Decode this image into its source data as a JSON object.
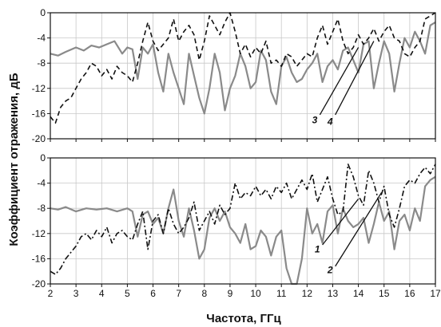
{
  "chart_data": {
    "type": "line",
    "xlabel": "Частота, ГГц",
    "ylabel": "Коэффициент отражения, дБ",
    "xlim": [
      2,
      17
    ],
    "x_ticks": [
      "2",
      "3",
      "4",
      "5",
      "6",
      "7",
      "8",
      "9",
      "10",
      "11",
      "12",
      "13",
      "14",
      "15",
      "16",
      "17"
    ],
    "grid": true,
    "panels": [
      {
        "ylim": [
          -20,
          0
        ],
        "y_ticks": [
          "0",
          "-4",
          "-8",
          "-12",
          "-16",
          "-20"
        ],
        "series": [
          {
            "name": "3",
            "style": "solid",
            "color": "#8a8a8a",
            "x": [
              2.0,
              2.3,
              2.6,
              3.0,
              3.3,
              3.6,
              3.9,
              4.2,
              4.5,
              4.8,
              5.0,
              5.2,
              5.4,
              5.6,
              5.8,
              6.0,
              6.2,
              6.4,
              6.6,
              6.8,
              7.0,
              7.2,
              7.4,
              7.6,
              7.8,
              8.0,
              8.2,
              8.4,
              8.6,
              8.8,
              9.0,
              9.2,
              9.4,
              9.6,
              9.8,
              10.0,
              10.2,
              10.4,
              10.6,
              10.8,
              11.0,
              11.2,
              11.4,
              11.6,
              11.8,
              12.0,
              12.2,
              12.4,
              12.6,
              12.8,
              13.0,
              13.2,
              13.4,
              13.6,
              13.8,
              14.0,
              14.2,
              14.4,
              14.6,
              14.8,
              15.0,
              15.2,
              15.4,
              15.6,
              15.8,
              16.0,
              16.2,
              16.4,
              16.6,
              16.8,
              17.0
            ],
            "y": [
              -6.5,
              -6.8,
              -6.2,
              -5.5,
              -6.0,
              -5.2,
              -5.5,
              -5.0,
              -4.5,
              -6.5,
              -5.5,
              -5.8,
              -10.5,
              -5.5,
              -6.5,
              -5.0,
              -9.5,
              -12.5,
              -6.5,
              -9.5,
              -12.0,
              -14.5,
              -6.5,
              -10.0,
              -13.5,
              -16.0,
              -12.0,
              -6.5,
              -9.5,
              -15.5,
              -12.0,
              -10.0,
              -6.5,
              -8.5,
              -12.0,
              -11.0,
              -6.0,
              -7.5,
              -12.5,
              -14.5,
              -8.5,
              -7.0,
              -9.5,
              -11.0,
              -10.5,
              -9.0,
              -8.0,
              -6.5,
              -11.0,
              -8.5,
              -7.5,
              -9.0,
              -6.0,
              -5.5,
              -7.5,
              -9.5,
              -5.0,
              -4.5,
              -12.0,
              -8.0,
              -4.5,
              -6.5,
              -12.5,
              -8.0,
              -4.0,
              -5.5,
              -3.0,
              -4.5,
              -6.5,
              -2.0,
              -1.5
            ]
          },
          {
            "name": "4",
            "style": "dashed",
            "color": "#111111",
            "x": [
              2.0,
              2.2,
              2.4,
              2.6,
              2.8,
              3.0,
              3.2,
              3.4,
              3.6,
              3.8,
              4.0,
              4.2,
              4.4,
              4.6,
              4.8,
              5.0,
              5.2,
              5.4,
              5.6,
              5.8,
              6.0,
              6.2,
              6.4,
              6.6,
              6.8,
              7.0,
              7.2,
              7.4,
              7.6,
              7.8,
              8.0,
              8.2,
              8.4,
              8.6,
              8.8,
              9.0,
              9.2,
              9.4,
              9.6,
              9.8,
              10.0,
              10.2,
              10.4,
              10.6,
              10.8,
              11.0,
              11.2,
              11.4,
              11.6,
              11.8,
              12.0,
              12.2,
              12.4,
              12.6,
              12.8,
              13.0,
              13.2,
              13.4,
              13.6,
              13.8,
              14.0,
              14.2,
              14.4,
              14.6,
              14.8,
              15.0,
              15.2,
              15.4,
              15.6,
              15.8,
              16.0,
              16.2,
              16.4,
              16.6,
              16.8,
              17.0
            ],
            "y": [
              -16.5,
              -17.5,
              -15.0,
              -14.0,
              -13.5,
              -12.0,
              -10.5,
              -9.5,
              -8.0,
              -8.5,
              -10.0,
              -9.0,
              -10.5,
              -8.5,
              -9.5,
              -10.0,
              -11.0,
              -8.0,
              -4.5,
              -1.5,
              -4.5,
              -6.0,
              -5.0,
              -4.0,
              -1.0,
              -4.5,
              -3.0,
              -2.0,
              -3.5,
              -7.5,
              -4.5,
              -0.5,
              -2.0,
              -3.5,
              -1.5,
              0.0,
              -3.0,
              -6.5,
              -5.0,
              -7.0,
              -5.5,
              -6.5,
              -4.5,
              -8.0,
              -7.5,
              -8.5,
              -6.5,
              -7.0,
              -8.5,
              -7.5,
              -6.5,
              -7.0,
              -4.0,
              -2.0,
              -5.0,
              -3.0,
              -1.0,
              -4.5,
              -6.5,
              -5.5,
              -3.5,
              -5.0,
              -4.0,
              -2.5,
              -4.5,
              -3.0,
              -2.0,
              -4.0,
              -4.5,
              -6.5,
              -7.0,
              -5.5,
              -4.5,
              -1.0,
              -0.5,
              0.0
            ]
          }
        ],
        "callouts": [
          {
            "label": "3",
            "text_x": 12.3,
            "text_y": -17.5,
            "line_x1": 12.5,
            "line_y1": -16.2,
            "line_x2": 14.0,
            "line_y2": -5.5
          },
          {
            "label": "4",
            "text_x": 12.9,
            "text_y": -17.8,
            "line_x1": 13.1,
            "line_y1": -16.2,
            "line_x2": 14.6,
            "line_y2": -4.5
          }
        ]
      },
      {
        "ylim": [
          -20,
          0
        ],
        "y_ticks": [
          "0",
          "-4",
          "-8",
          "-12",
          "-16",
          "-20"
        ],
        "series": [
          {
            "name": "1",
            "style": "solid",
            "color": "#8a8a8a",
            "x": [
              2.0,
              2.3,
              2.6,
              3.0,
              3.4,
              3.8,
              4.2,
              4.6,
              5.0,
              5.2,
              5.4,
              5.6,
              5.8,
              6.0,
              6.2,
              6.4,
              6.6,
              6.8,
              7.0,
              7.2,
              7.4,
              7.6,
              7.8,
              8.0,
              8.2,
              8.4,
              8.6,
              8.8,
              9.0,
              9.2,
              9.4,
              9.6,
              9.8,
              10.0,
              10.2,
              10.4,
              10.6,
              10.8,
              11.0,
              11.2,
              11.4,
              11.6,
              11.8,
              12.0,
              12.2,
              12.4,
              12.6,
              12.8,
              13.0,
              13.2,
              13.4,
              13.6,
              13.8,
              14.0,
              14.2,
              14.4,
              14.6,
              14.8,
              15.0,
              15.2,
              15.4,
              15.6,
              15.8,
              16.0,
              16.2,
              16.4,
              16.6,
              16.8,
              17.0
            ],
            "y": [
              -8.0,
              -8.2,
              -7.8,
              -8.5,
              -8.0,
              -8.2,
              -8.0,
              -8.5,
              -8.0,
              -8.5,
              -12.5,
              -9.0,
              -8.5,
              -10.5,
              -9.5,
              -12.0,
              -8.0,
              -5.0,
              -10.0,
              -12.5,
              -8.0,
              -11.5,
              -16.0,
              -14.5,
              -9.5,
              -8.0,
              -10.0,
              -8.5,
              -11.0,
              -12.0,
              -13.5,
              -10.5,
              -14.5,
              -14.0,
              -11.5,
              -12.5,
              -15.5,
              -12.5,
              -11.5,
              -17.5,
              -20.0,
              -20.0,
              -16.0,
              -8.0,
              -12.0,
              -10.5,
              -13.5,
              -8.5,
              -7.5,
              -12.0,
              -8.0,
              -10.0,
              -11.0,
              -10.5,
              -9.5,
              -13.5,
              -10.5,
              -7.0,
              -10.0,
              -8.5,
              -14.5,
              -10.0,
              -9.0,
              -11.5,
              -8.0,
              -10.0,
              -4.5,
              -3.5,
              -3.0
            ]
          },
          {
            "name": "2",
            "style": "dashdot",
            "color": "#111111",
            "x": [
              2.0,
              2.2,
              2.4,
              2.6,
              2.8,
              3.0,
              3.2,
              3.4,
              3.6,
              3.8,
              4.0,
              4.2,
              4.4,
              4.6,
              4.8,
              5.0,
              5.2,
              5.4,
              5.6,
              5.8,
              6.0,
              6.2,
              6.4,
              6.6,
              6.8,
              7.0,
              7.2,
              7.4,
              7.6,
              7.8,
              8.0,
              8.2,
              8.4,
              8.6,
              8.8,
              9.0,
              9.2,
              9.4,
              9.6,
              9.8,
              10.0,
              10.2,
              10.4,
              10.6,
              10.8,
              11.0,
              11.2,
              11.4,
              11.6,
              11.8,
              12.0,
              12.2,
              12.4,
              12.6,
              12.8,
              13.0,
              13.2,
              13.4,
              13.6,
              13.8,
              14.0,
              14.2,
              14.4,
              14.6,
              14.8,
              15.0,
              15.2,
              15.4,
              15.6,
              15.8,
              16.0,
              16.2,
              16.4,
              16.6,
              16.8,
              17.0
            ],
            "y": [
              -18.0,
              -18.5,
              -17.5,
              -16.0,
              -15.0,
              -14.0,
              -12.5,
              -12.0,
              -13.0,
              -11.5,
              -12.5,
              -11.0,
              -13.5,
              -12.0,
              -11.5,
              -12.5,
              -13.0,
              -10.5,
              -8.5,
              -14.5,
              -10.0,
              -9.0,
              -12.0,
              -8.0,
              -10.5,
              -12.0,
              -11.0,
              -9.5,
              -7.0,
              -11.5,
              -10.0,
              -8.5,
              -10.5,
              -7.5,
              -9.0,
              -8.0,
              -4.0,
              -6.5,
              -5.5,
              -6.0,
              -4.5,
              -6.0,
              -5.0,
              -6.5,
              -4.5,
              -5.5,
              -4.0,
              -6.5,
              -5.0,
              -3.5,
              -5.0,
              -2.5,
              -7.0,
              -5.0,
              -3.0,
              -6.5,
              -9.0,
              -8.5,
              -1.0,
              -3.0,
              -6.0,
              -7.5,
              -2.0,
              -4.0,
              -7.0,
              -4.5,
              -9.0,
              -11.0,
              -8.0,
              -4.5,
              -3.5,
              -4.0,
              -2.5,
              -1.5,
              -2.5,
              -1.0
            ]
          }
        ],
        "callouts": [
          {
            "label": "1",
            "text_x": 12.4,
            "text_y": -15.0,
            "line_x1": 12.6,
            "line_y1": -13.8,
            "line_x2": 14.0,
            "line_y2": -6.5
          },
          {
            "label": "2",
            "text_x": 12.9,
            "text_y": -18.3,
            "line_x1": 13.1,
            "line_y1": -17.2,
            "line_x2": 14.9,
            "line_y2": -5.5
          }
        ]
      }
    ]
  }
}
